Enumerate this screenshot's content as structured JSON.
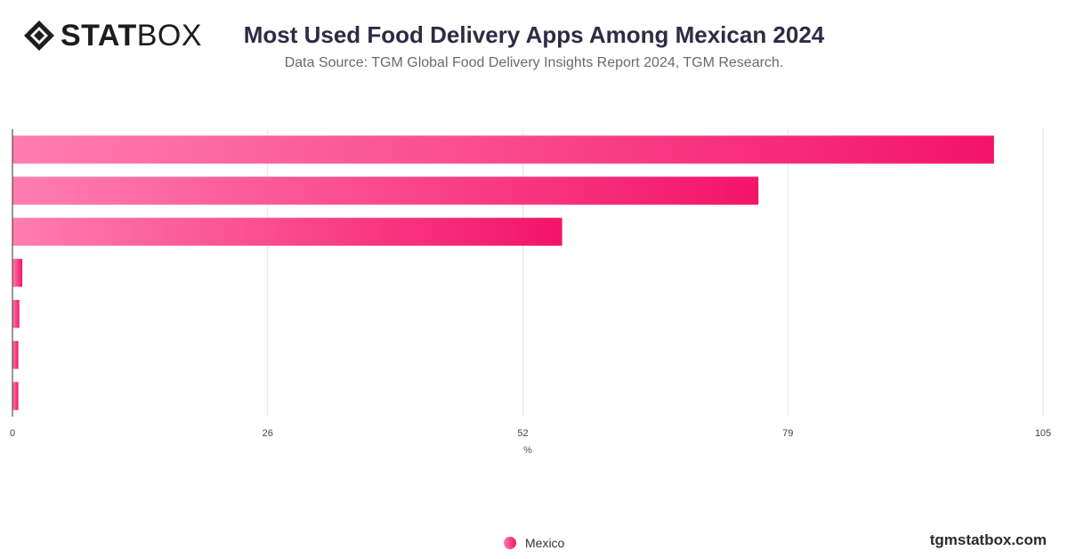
{
  "header": {
    "logo_bold": "STAT",
    "logo_light": "BOX",
    "title": "Most Used Food Delivery Apps Among Mexican 2024",
    "subtitle": "Data Source: TGM Global Food Delivery Insights Report 2024, TGM Research."
  },
  "chart_data": {
    "type": "bar",
    "orientation": "horizontal",
    "title": "Most Used Food Delivery Apps Among Mexican 2024",
    "xlabel": "%",
    "ylabel": "",
    "xlim": [
      0,
      105
    ],
    "x_ticks": [
      "0",
      "26",
      "52",
      "79",
      "105"
    ],
    "grid": true,
    "legend_position": "bottom-center",
    "categories": [
      "",
      "",
      "",
      "",
      "",
      "",
      ""
    ],
    "series": [
      {
        "name": "Mexico",
        "values": [
          100,
          76,
          56,
          1,
          0.7,
          0.6,
          0.6
        ]
      }
    ],
    "colors": {
      "bar_start": "#ff7eaf",
      "bar_end": "#f4146a",
      "grid": "#e3e3e3",
      "axis": "#333333"
    }
  },
  "legend": {
    "label": "Mexico"
  },
  "footer": {
    "url": "tgmstatbox.com"
  }
}
